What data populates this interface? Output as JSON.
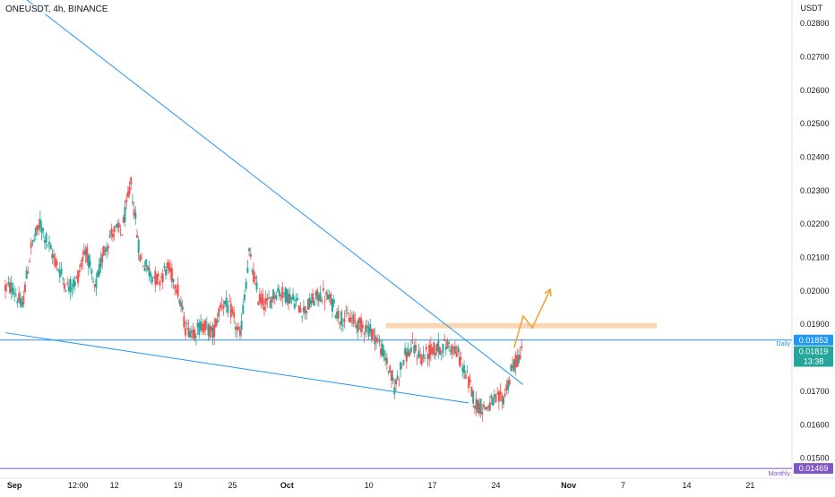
{
  "header": {
    "symbol_title": "ONEUSDT, 4h, BINANCE"
  },
  "price_axis": {
    "currency": "USDT",
    "ticks": [
      "0.02800",
      "0.02700",
      "0.02600",
      "0.02500",
      "0.02400",
      "0.02300",
      "0.02200",
      "0.02100",
      "0.02000",
      "0.01900",
      "0.01700",
      "0.01600",
      "0.01500"
    ]
  },
  "time_axis": {
    "ticks": [
      "Sep",
      "12:00",
      "12",
      "19",
      "25",
      "Oct",
      "10",
      "17",
      "24",
      "Nov",
      "7",
      "14",
      "21"
    ]
  },
  "levels": {
    "daily": {
      "label": "Daily",
      "value": "0.01853",
      "color": "#2196f3"
    },
    "monthly": {
      "label": "Monthly",
      "value": "0.01469",
      "color": "#7e57c2"
    }
  },
  "current_price": {
    "value": "0.01819",
    "countdown": "13:38",
    "color": "#26a69a"
  },
  "colors": {
    "up": "#26a69a",
    "down": "#ef5350",
    "trendline": "#2196f3",
    "zone": "#f7a35c",
    "projection": "#f0a030"
  },
  "chart_data": {
    "type": "candlestick",
    "symbol": "ONEUSDT",
    "interval": "4h",
    "exchange": "BINANCE",
    "ylim": [
      0.0144,
      0.0287
    ],
    "x_range": [
      "2022-08-31",
      "2022-11-25"
    ],
    "close_series": [
      [
        "2022-08-31",
        0.0201
      ],
      [
        "2022-09-01",
        0.0195
      ],
      [
        "2022-09-02",
        0.0213
      ],
      [
        "2022-09-03",
        0.022
      ],
      [
        "2022-09-04",
        0.0213
      ],
      [
        "2022-09-05",
        0.0207
      ],
      [
        "2022-09-06",
        0.0201
      ],
      [
        "2022-09-07",
        0.0203
      ],
      [
        "2022-09-08",
        0.0213
      ],
      [
        "2022-09-09",
        0.02
      ],
      [
        "2022-09-10",
        0.0212
      ],
      [
        "2022-09-11",
        0.0218
      ],
      [
        "2022-09-12",
        0.0218
      ],
      [
        "2022-09-13",
        0.0232
      ],
      [
        "2022-09-14",
        0.021
      ],
      [
        "2022-09-15",
        0.0206
      ],
      [
        "2022-09-16",
        0.0203
      ],
      [
        "2022-09-17",
        0.0207
      ],
      [
        "2022-09-18",
        0.0202
      ],
      [
        "2022-09-19",
        0.0189
      ],
      [
        "2022-09-20",
        0.0188
      ],
      [
        "2022-09-21",
        0.019
      ],
      [
        "2022-09-22",
        0.0187
      ],
      [
        "2022-09-23",
        0.0197
      ],
      [
        "2022-09-24",
        0.0194
      ],
      [
        "2022-09-25",
        0.0186
      ],
      [
        "2022-09-26",
        0.0211
      ],
      [
        "2022-09-27",
        0.0198
      ],
      [
        "2022-09-28",
        0.0196
      ],
      [
        "2022-09-29",
        0.02
      ],
      [
        "2022-09-30",
        0.0199
      ],
      [
        "2022-10-01",
        0.0197
      ],
      [
        "2022-10-02",
        0.0194
      ],
      [
        "2022-10-03",
        0.0197
      ],
      [
        "2022-10-04",
        0.0199
      ],
      [
        "2022-10-05",
        0.0197
      ],
      [
        "2022-10-06",
        0.0192
      ],
      [
        "2022-10-07",
        0.0192
      ],
      [
        "2022-10-08",
        0.019
      ],
      [
        "2022-10-09",
        0.0189
      ],
      [
        "2022-10-10",
        0.0186
      ],
      [
        "2022-10-11",
        0.018
      ],
      [
        "2022-10-12",
        0.0171
      ],
      [
        "2022-10-13",
        0.018
      ],
      [
        "2022-10-14",
        0.0183
      ],
      [
        "2022-10-15",
        0.018
      ],
      [
        "2022-10-16",
        0.0182
      ],
      [
        "2022-10-17",
        0.0183
      ],
      [
        "2022-10-18",
        0.0184
      ],
      [
        "2022-10-19",
        0.0181
      ],
      [
        "2022-10-20",
        0.0174
      ],
      [
        "2022-10-21",
        0.0166
      ],
      [
        "2022-10-22",
        0.0165
      ],
      [
        "2022-10-23",
        0.0167
      ],
      [
        "2022-10-24",
        0.0168
      ],
      [
        "2022-10-25",
        0.0177
      ],
      [
        "2022-10-26",
        0.0182
      ]
    ],
    "annotations": {
      "resistance_zone": [
        0.01888,
        0.01904
      ],
      "descending_trendline": [
        [
          "2022-08-31",
          0.0292
        ],
        [
          "2022-10-27",
          0.0172
        ]
      ],
      "support_trendline": [
        [
          "2022-08-31",
          0.01875
        ],
        [
          "2022-10-21",
          0.01665
        ]
      ],
      "projection_path": [
        [
          "2022-10-26",
          0.0183
        ],
        [
          "2022-10-27",
          0.01925
        ],
        [
          "2022-10-28",
          0.0189
        ],
        [
          "2022-10-30",
          0.02005
        ]
      ]
    }
  }
}
